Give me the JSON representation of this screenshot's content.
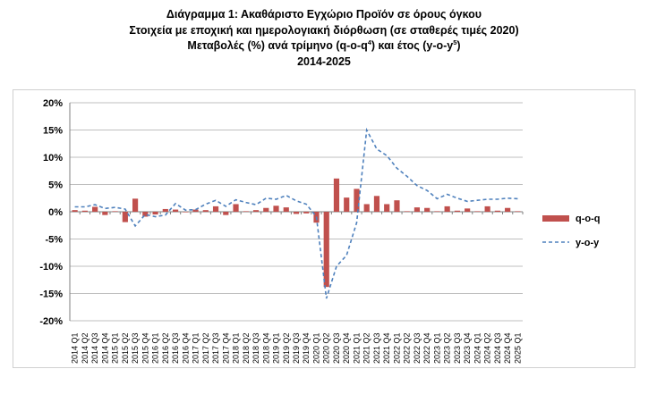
{
  "title": {
    "line1": "Διάγραμμα 1: Ακαθάριστο Εγχώριο Προϊόν σε όρους όγκου",
    "line2": "Στοιχεία με εποχική και ημερολογιακή διόρθωση (σε σταθερές τιμές 2020)",
    "line3_main": "Μεταβολές (%) ανά τρίμηνο (q-o-q",
    "line3_sup1": "4",
    "line3_mid": ") και έτος (y-o-y",
    "line3_sup2": "5",
    "line3_end": ")",
    "line4": "2014-2025"
  },
  "chart_data": {
    "type": "bar",
    "categories": [
      "2014 Q1",
      "2014 Q2",
      "2014 Q3",
      "2014 Q4",
      "2015 Q1",
      "2015 Q2",
      "2015 Q3",
      "2015 Q4",
      "2016 Q1",
      "2016 Q2",
      "2016 Q3",
      "2016 Q4",
      "2017 Q1",
      "2017 Q2",
      "2017 Q3",
      "2017 Q4",
      "2018 Q1",
      "2018 Q2",
      "2018 Q3",
      "2018 Q4",
      "2019 Q1",
      "2019 Q2",
      "2019 Q3",
      "2019 Q4",
      "2020 Q1",
      "2020 Q2",
      "2020 Q3",
      "2020 Q4",
      "2021 Q1",
      "2021 Q2",
      "2021 Q3",
      "2021 Q4",
      "2022 Q1",
      "2022 Q2",
      "2022 Q3",
      "2022 Q4",
      "2023 Q1",
      "2023 Q2",
      "2023 Q3",
      "2023 Q4",
      "2024 Q1",
      "2024 Q2",
      "2024 Q3",
      "2024 Q4",
      "2025 Q1"
    ],
    "series": [
      {
        "name": "q-o-q",
        "kind": "bar",
        "color": "#c0504d",
        "values": [
          0.3,
          0.2,
          0.9,
          -0.6,
          0.1,
          -1.9,
          2.4,
          -0.9,
          -0.5,
          0.5,
          0.4,
          -0.1,
          0.4,
          0.3,
          1.0,
          -0.6,
          1.4,
          0.1,
          0.3,
          0.7,
          1.1,
          0.8,
          -0.4,
          -0.3,
          -2.0,
          -13.8,
          6.1,
          2.6,
          4.2,
          1.4,
          2.9,
          1.4,
          2.1,
          0.1,
          0.8,
          0.7,
          0.1,
          1.0,
          0.2,
          0.6,
          0.1,
          1.0,
          0.2,
          0.7,
          0.1
        ]
      },
      {
        "name": "y-o-y",
        "kind": "line",
        "color": "#4f81bd",
        "dash": "dashed",
        "values": [
          0.9,
          0.9,
          1.3,
          0.6,
          0.8,
          0.5,
          -2.6,
          -0.5,
          -0.9,
          -0.6,
          1.5,
          0.3,
          0.4,
          1.4,
          2.1,
          1.0,
          2.2,
          1.7,
          1.3,
          2.5,
          2.3,
          3.0,
          2.0,
          1.4,
          -0.9,
          -15.9,
          -10.0,
          -8.0,
          -2.0,
          15.0,
          11.5,
          10.3,
          8.0,
          6.5,
          4.8,
          3.9,
          2.4,
          3.2,
          2.5,
          1.9,
          2.1,
          2.3,
          2.3,
          2.5,
          2.4
        ]
      }
    ],
    "yaxis": {
      "min": -20,
      "max": 20,
      "step": 5,
      "format": "percent",
      "tick_labels": [
        "-20%",
        "-15%",
        "-10%",
        "-5%",
        "0%",
        "5%",
        "10%",
        "15%",
        "20%"
      ]
    },
    "grid": "horizontal",
    "legend": "right"
  }
}
